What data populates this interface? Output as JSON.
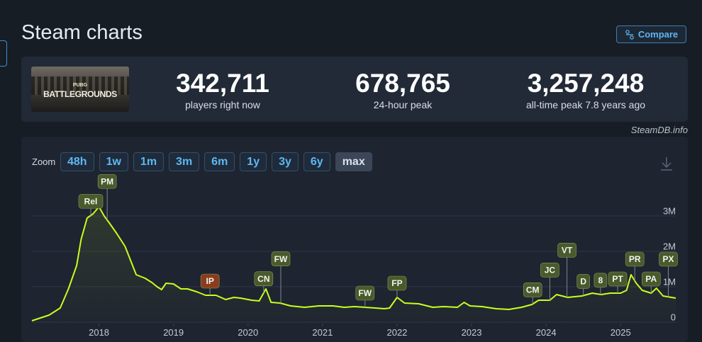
{
  "header": {
    "title": "Steam charts",
    "compare": "Compare"
  },
  "game": {
    "logo_top": "PUBG",
    "logo_main": "BATTLEGROUNDS"
  },
  "stats": [
    {
      "value": "342,711",
      "label": "players right now"
    },
    {
      "value": "678,765",
      "label": "24-hour peak"
    },
    {
      "value": "3,257,248",
      "label": "all-time peak 7.8 years ago"
    }
  ],
  "source": "SteamDB.info",
  "zoom": {
    "label": "Zoom",
    "options": [
      "48h",
      "1w",
      "1m",
      "3m",
      "6m",
      "1y",
      "3y",
      "6y",
      "max"
    ],
    "active": "max"
  },
  "chart_data": {
    "type": "line",
    "color": "#c8ff1e",
    "grid": true,
    "x": [
      2017.1,
      2017.33,
      2017.48,
      2017.59,
      2017.7,
      2017.76,
      2017.84,
      2017.92,
      2018.0,
      2018.07,
      2018.14,
      2018.24,
      2018.35,
      2018.5,
      2018.62,
      2018.71,
      2018.78,
      2018.84,
      2018.9,
      2019.0,
      2019.1,
      2019.19,
      2019.31,
      2019.43,
      2019.57,
      2019.7,
      2019.81,
      2019.9,
      2020.05,
      2020.15,
      2020.24,
      2020.31,
      2020.43,
      2020.57,
      2020.76,
      2020.95,
      2021.14,
      2021.29,
      2021.43,
      2021.57,
      2021.71,
      2021.83,
      2021.9,
      2022.0,
      2022.1,
      2022.29,
      2022.48,
      2022.62,
      2022.81,
      2022.9,
      2022.98,
      2023.14,
      2023.33,
      2023.5,
      2023.67,
      2023.81,
      2023.9,
      2024.05,
      2024.14,
      2024.29,
      2024.48,
      2024.62,
      2024.74,
      2024.86,
      2025.0,
      2025.08,
      2025.14,
      2025.21,
      2025.29,
      2025.41,
      2025.48,
      2025.57,
      2025.74
    ],
    "values": [
      40000,
      200000,
      400000,
      940000,
      1600000,
      2340000,
      2940000,
      3060000,
      3260000,
      3000000,
      2800000,
      2500000,
      2140000,
      1340000,
      1240000,
      1120000,
      1000000,
      920000,
      1100000,
      1080000,
      940000,
      940000,
      860000,
      760000,
      760000,
      640000,
      700000,
      680000,
      620000,
      600000,
      940000,
      560000,
      540000,
      460000,
      420000,
      460000,
      460000,
      420000,
      440000,
      420000,
      400000,
      380000,
      400000,
      700000,
      540000,
      520000,
      420000,
      440000,
      420000,
      560000,
      460000,
      440000,
      380000,
      360000,
      420000,
      500000,
      620000,
      620000,
      780000,
      700000,
      740000,
      820000,
      780000,
      820000,
      820000,
      900000,
      1340000,
      1100000,
      900000,
      820000,
      960000,
      740000,
      680000
    ],
    "xlim": [
      2017.1,
      2025.74
    ],
    "xticks": [
      2018,
      2019,
      2020,
      2021,
      2022,
      2023,
      2024,
      2025
    ],
    "ylim": [
      -40000,
      3920000
    ],
    "yticks": [
      0,
      {
        "value": 1000000,
        "label": "1M"
      },
      {
        "value": 2000000,
        "label": "2M"
      },
      {
        "value": 3000000,
        "label": "3M"
      }
    ],
    "annotations": [
      {
        "label": "Rel",
        "x": 2017.89,
        "color": "#4a5a2c"
      },
      {
        "label": "PM",
        "x": 2018.11,
        "color": "#4a5a2c"
      },
      {
        "label": "IP",
        "x": 2019.49,
        "color": "#8a3d1e"
      },
      {
        "label": "CN",
        "x": 2020.21,
        "color": "#4a5a2c"
      },
      {
        "label": "FW",
        "x": 2020.44,
        "color": "#4a5a2c"
      },
      {
        "label": "FW",
        "x": 2021.57,
        "color": "#4a5a2c"
      },
      {
        "label": "FP",
        "x": 2022.0,
        "color": "#4a5a2c"
      },
      {
        "label": "CM",
        "x": 2023.82,
        "color": "#4a5a2c"
      },
      {
        "label": "JC",
        "x": 2024.05,
        "color": "#4a5a2c"
      },
      {
        "label": "VT",
        "x": 2024.28,
        "color": "#4a5a2c"
      },
      {
        "label": "D",
        "x": 2024.5,
        "color": "#4a5a2c"
      },
      {
        "label": "8",
        "x": 2024.73,
        "color": "#4a5a2c"
      },
      {
        "label": "PT",
        "x": 2024.96,
        "color": "#4a5a2c"
      },
      {
        "label": "PR",
        "x": 2025.19,
        "color": "#4a5a2c"
      },
      {
        "label": "PA",
        "x": 2025.41,
        "color": "#4a5a2c"
      },
      {
        "label": "PX",
        "x": 2025.64,
        "color": "#4a5a2c"
      }
    ]
  }
}
